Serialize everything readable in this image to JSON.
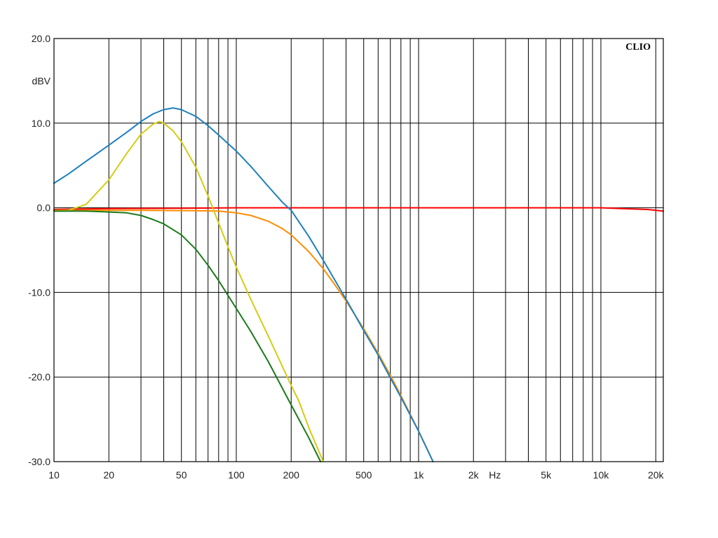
{
  "chart_data": {
    "type": "line",
    "title": "",
    "brand_label": "CLIO",
    "ylabel": "dBV",
    "xlabel": "Hz",
    "x_scale": "log",
    "xlim": [
      10,
      22000
    ],
    "ylim": [
      -30,
      20
    ],
    "grid": true,
    "y_ticks": [
      {
        "value": 20,
        "label": "20.0"
      },
      {
        "value": 10,
        "label": "10.0"
      },
      {
        "value": 0,
        "label": "0.0"
      },
      {
        "value": -10,
        "label": "-10.0"
      },
      {
        "value": -20,
        "label": "-20.0"
      },
      {
        "value": -30,
        "label": "-30.0"
      }
    ],
    "x_gridlines": [
      10,
      20,
      30,
      40,
      50,
      60,
      70,
      80,
      90,
      100,
      200,
      300,
      400,
      500,
      600,
      700,
      800,
      900,
      1000,
      2000,
      3000,
      4000,
      5000,
      6000,
      7000,
      8000,
      9000,
      10000,
      20000
    ],
    "x_tick_labels": [
      {
        "value": 10,
        "label": "10"
      },
      {
        "value": 20,
        "label": "20"
      },
      {
        "value": 50,
        "label": "50"
      },
      {
        "value": 100,
        "label": "100"
      },
      {
        "value": 200,
        "label": "200"
      },
      {
        "value": 500,
        "label": "500"
      },
      {
        "value": 1000,
        "label": "1k"
      },
      {
        "value": 2000,
        "label": "2k"
      },
      {
        "value": 5000,
        "label": "5k"
      },
      {
        "value": 10000,
        "label": "10k"
      },
      {
        "value": 20000,
        "label": "20k"
      }
    ],
    "series": [
      {
        "color": "#ff0000",
        "points": [
          [
            10,
            -0.2
          ],
          [
            20,
            -0.1
          ],
          [
            50,
            -0.05
          ],
          [
            100,
            0
          ],
          [
            500,
            0
          ],
          [
            1000,
            0
          ],
          [
            5000,
            0
          ],
          [
            10000,
            0
          ],
          [
            13000,
            -0.1
          ],
          [
            18000,
            -0.2
          ],
          [
            22000,
            -0.4
          ]
        ]
      },
      {
        "color": "#ff8c00",
        "points": [
          [
            10,
            -0.3
          ],
          [
            30,
            -0.3
          ],
          [
            60,
            -0.35
          ],
          [
            80,
            -0.4
          ],
          [
            100,
            -0.6
          ],
          [
            120,
            -0.9
          ],
          [
            150,
            -1.6
          ],
          [
            180,
            -2.5
          ],
          [
            200,
            -3.2
          ],
          [
            250,
            -5.2
          ],
          [
            300,
            -7.2
          ],
          [
            350,
            -9.2
          ],
          [
            400,
            -11.0
          ],
          [
            500,
            -14.3
          ],
          [
            600,
            -17.2
          ],
          [
            700,
            -19.8
          ],
          [
            800,
            -22.2
          ],
          [
            900,
            -24.4
          ],
          [
            1000,
            -26.4
          ],
          [
            1200,
            -30
          ]
        ]
      },
      {
        "color": "#1e7fc0",
        "points": [
          [
            10,
            2.9
          ],
          [
            12,
            4.0
          ],
          [
            15,
            5.5
          ],
          [
            20,
            7.4
          ],
          [
            25,
            8.9
          ],
          [
            30,
            10.2
          ],
          [
            35,
            11.1
          ],
          [
            40,
            11.6
          ],
          [
            45,
            11.8
          ],
          [
            50,
            11.6
          ],
          [
            60,
            10.8
          ],
          [
            70,
            9.7
          ],
          [
            80,
            8.6
          ],
          [
            100,
            6.7
          ],
          [
            120,
            4.9
          ],
          [
            150,
            2.5
          ],
          [
            180,
            0.6
          ],
          [
            200,
            -0.3
          ],
          [
            250,
            -3.4
          ],
          [
            300,
            -6.2
          ],
          [
            400,
            -10.8
          ],
          [
            500,
            -14.5
          ],
          [
            600,
            -17.4
          ],
          [
            700,
            -20.1
          ],
          [
            800,
            -22.4
          ],
          [
            1000,
            -26.4
          ],
          [
            1200,
            -30
          ]
        ]
      },
      {
        "color": "#d4cc14",
        "points": [
          [
            10,
            -0.4
          ],
          [
            12,
            -0.3
          ],
          [
            15,
            0.4
          ],
          [
            20,
            3.3
          ],
          [
            25,
            6.4
          ],
          [
            30,
            8.7
          ],
          [
            35,
            9.9
          ],
          [
            38,
            10.2
          ],
          [
            40,
            10.0
          ],
          [
            45,
            9.1
          ],
          [
            50,
            7.8
          ],
          [
            60,
            4.8
          ],
          [
            70,
            1.4
          ],
          [
            80,
            -1.8
          ],
          [
            90,
            -4.6
          ],
          [
            100,
            -7.0
          ],
          [
            120,
            -10.8
          ],
          [
            150,
            -15.2
          ],
          [
            200,
            -21.0
          ],
          [
            220,
            -22.8
          ],
          [
            250,
            -26.0
          ],
          [
            300,
            -30
          ]
        ]
      },
      {
        "color": "#1a7a1a",
        "points": [
          [
            10,
            -0.4
          ],
          [
            15,
            -0.4
          ],
          [
            20,
            -0.5
          ],
          [
            25,
            -0.6
          ],
          [
            30,
            -0.9
          ],
          [
            35,
            -1.4
          ],
          [
            40,
            -1.9
          ],
          [
            50,
            -3.2
          ],
          [
            60,
            -4.9
          ],
          [
            70,
            -6.8
          ],
          [
            80,
            -8.6
          ],
          [
            100,
            -11.9
          ],
          [
            120,
            -14.6
          ],
          [
            150,
            -18.2
          ],
          [
            200,
            -23.3
          ],
          [
            250,
            -27.2
          ],
          [
            290,
            -30
          ]
        ]
      }
    ]
  }
}
